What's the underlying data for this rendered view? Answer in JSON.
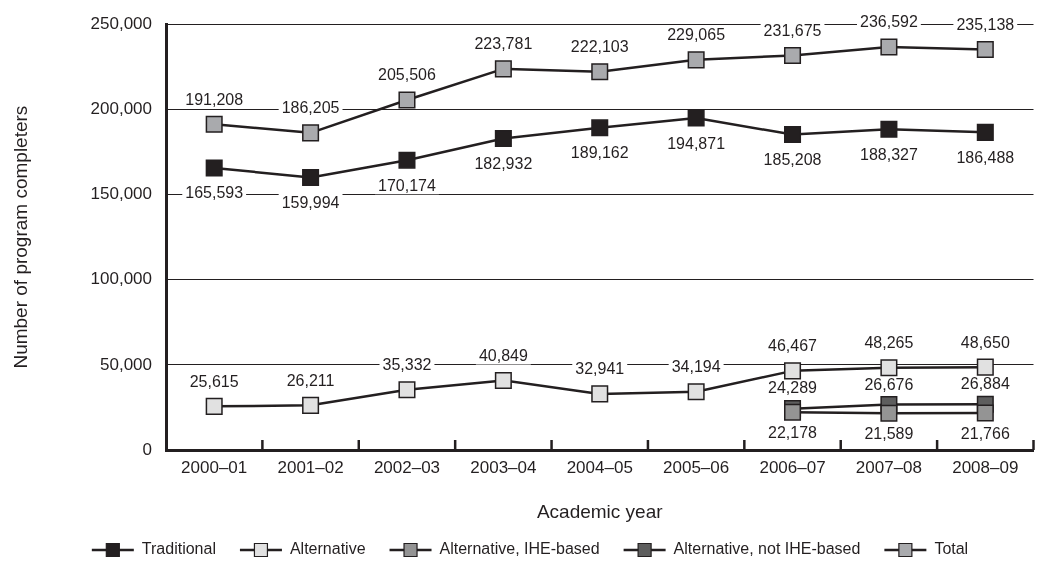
{
  "chart_data": {
    "type": "line",
    "xlabel": "Academic year",
    "ylabel": "Number of program completers",
    "categories": [
      "2000–01",
      "2001–02",
      "2002–03",
      "2003–04",
      "2004–05",
      "2005–06",
      "2006–07",
      "2007–08",
      "2008–09"
    ],
    "series": [
      {
        "name": "Traditional",
        "color": "#231f20",
        "values": [
          165593,
          159994,
          170174,
          182932,
          189162,
          194871,
          185208,
          188327,
          186488
        ],
        "value_labels": [
          "165,593",
          "159,994",
          "170,174",
          "182,932",
          "189,162",
          "194,871",
          "185,208",
          "188,327",
          "186,488"
        ]
      },
      {
        "name": "Alternative",
        "color": "#e1e1e1",
        "values": [
          25615,
          26211,
          35332,
          40849,
          32941,
          34194,
          46467,
          48265,
          48650
        ],
        "value_labels": [
          "25,615",
          "26,211",
          "35,332",
          "40,849",
          "32,941",
          "34,194",
          "46,467",
          "48,265",
          "48,650"
        ]
      },
      {
        "name": "Alternative, IHE-based",
        "color": "#949494",
        "values": [
          null,
          null,
          null,
          null,
          null,
          null,
          22178,
          21589,
          21766
        ],
        "value_labels": [
          null,
          null,
          null,
          null,
          null,
          null,
          "22,178",
          "21,589",
          "21,766"
        ]
      },
      {
        "name": "Alternative, not IHE-based",
        "color": "#5e5e5e",
        "values": [
          null,
          null,
          null,
          null,
          null,
          null,
          24289,
          26676,
          26884
        ],
        "value_labels": [
          null,
          null,
          null,
          null,
          null,
          null,
          "24,289",
          "26,676",
          "26,884"
        ]
      },
      {
        "name": "Total",
        "color": "#a9aaad",
        "values": [
          191208,
          186205,
          205506,
          223781,
          222103,
          229065,
          231675,
          236592,
          235138
        ],
        "value_labels": [
          "191,208",
          "186,205",
          "205,506",
          "223,781",
          "222,103",
          "229,065",
          "231,675",
          "236,592",
          "235,138"
        ]
      }
    ],
    "ylim": [
      0,
      250000
    ],
    "yticks": [
      0,
      {
        "value": 50000,
        "label": "50,000"
      },
      {
        "value": 100000,
        "label": "100,000"
      },
      {
        "value": 150000,
        "label": "150,000"
      },
      {
        "value": 200000,
        "label": "200,000"
      },
      {
        "value": 250000,
        "label": "250,000"
      }
    ],
    "grid": "y",
    "legend": "bottom",
    "marker": "square"
  }
}
